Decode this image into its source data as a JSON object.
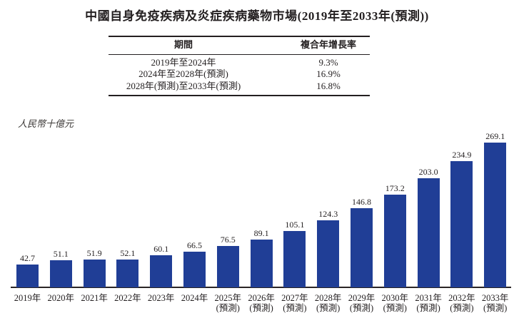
{
  "title": "中國自身免疫疾病及炎症疾病藥物市場(2019年至2033年(預測))",
  "table": {
    "col1_header": "期間",
    "col2_header": "複合年增長率",
    "rows": [
      {
        "period": "2019年至2024年",
        "cagr": "9.3%"
      },
      {
        "period": "2024年至2028年(預測)",
        "cagr": "16.9%"
      },
      {
        "period": "2028年(預測)至2033年(預測)",
        "cagr": "16.8%"
      }
    ]
  },
  "chart_data": {
    "type": "bar",
    "title": "中國自身免疫疾病及炎症疾病藥物市場(2019年至2033年(預測))",
    "ylabel": "人民幣十億元",
    "xlabel": "",
    "categories": [
      "2019年",
      "2020年",
      "2021年",
      "2022年",
      "2023年",
      "2024年",
      "2025年",
      "2026年",
      "2027年",
      "2028年",
      "2029年",
      "2030年",
      "2031年",
      "2032年",
      "2033年"
    ],
    "values": [
      42.7,
      51.1,
      51.9,
      52.1,
      60.1,
      66.5,
      76.5,
      89.1,
      105.1,
      124.3,
      146.8,
      173.2,
      203.0,
      234.9,
      269.1
    ],
    "forecast_label": "(預測)",
    "forecast_start_index": 6,
    "ylim": [
      0,
      290
    ],
    "grid": false,
    "legend": "none",
    "bar_color": "#203e96",
    "axis_color": "#2a2526",
    "text_color": "#231f20"
  }
}
